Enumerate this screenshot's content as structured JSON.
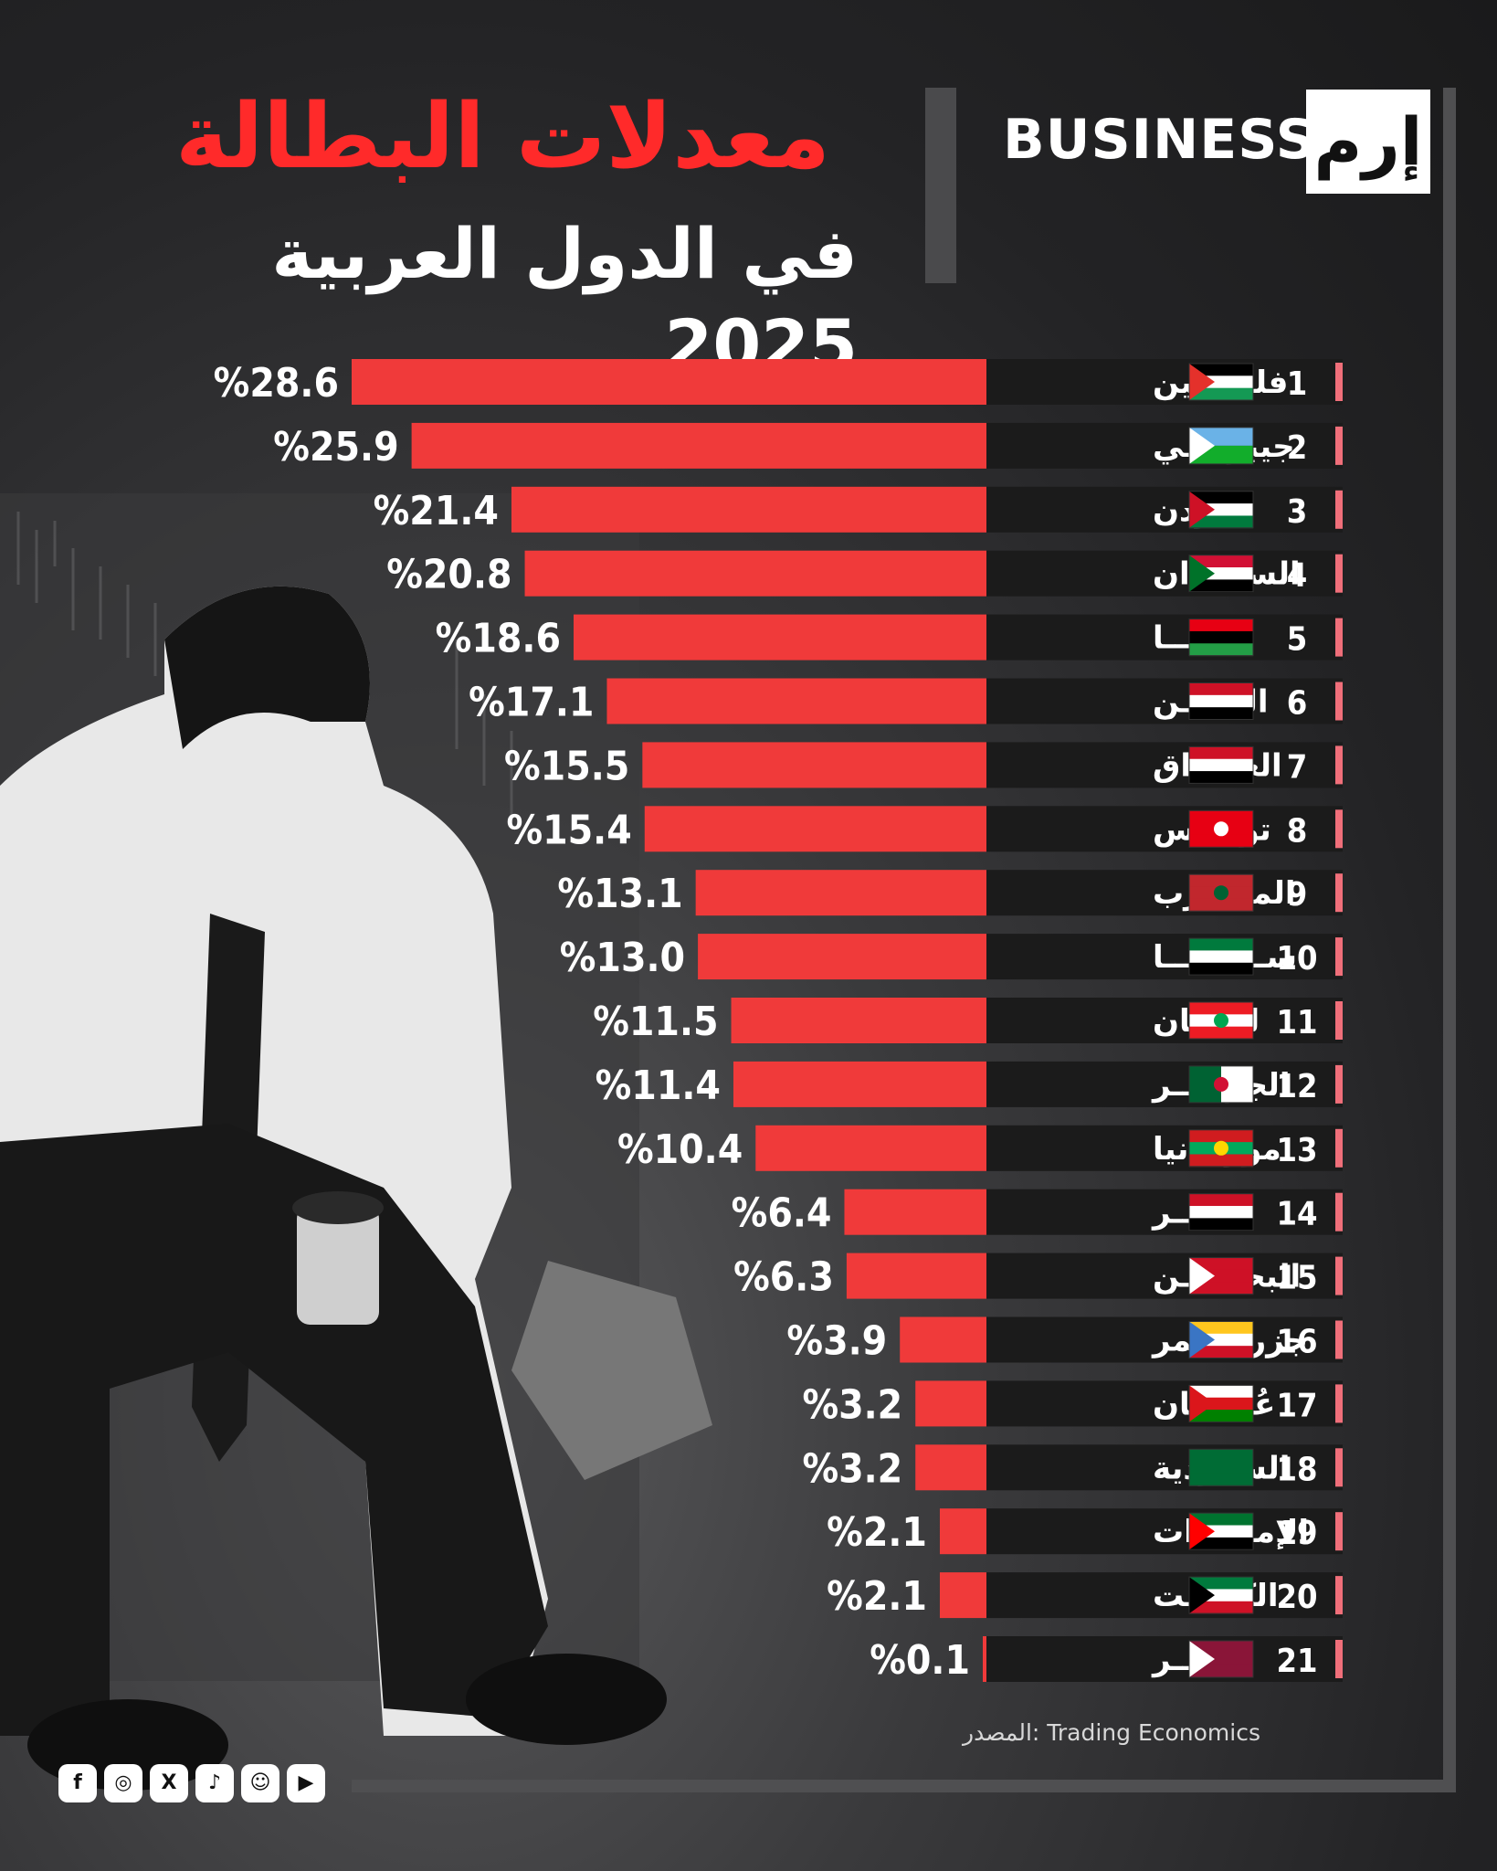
{
  "brand": {
    "business": "BUSINESS",
    "logo": "إرم"
  },
  "source": "المصدر: Trading Economics",
  "colors": {
    "bar": "#f03a3a",
    "label_bg": "#1b1b1b",
    "rank_marker": "#f06f7a",
    "title": "#ff2a2a"
  },
  "chart_data": {
    "type": "bar",
    "orientation": "horizontal",
    "title": "معدلات البطالة",
    "subtitle": "في الدول العربية 2025",
    "value_prefix": "%",
    "categories": [
      "فلسطين",
      "جيبوتـــي",
      "الأردن",
      "الســودان",
      "ليبيـــا",
      "اليمـــن",
      "العـــراق",
      "تونـــس",
      "المغـــرب",
      "ســوريـــا",
      "لبنـــان",
      "الجزائـــر",
      "موريتانيا",
      "مصـــر",
      "البحريـــن",
      "جزر القمر",
      "عُمــــان",
      "السعودية",
      "الإمـــارات",
      "الكويــت",
      "قطـــر"
    ],
    "ranks": [
      "1",
      "2",
      "3",
      "4",
      "5",
      "6",
      "7",
      "8",
      "9",
      "10",
      "11",
      "12",
      "13",
      "14",
      "15",
      "16",
      "17",
      "18",
      "19",
      "20",
      "21"
    ],
    "values": [
      28.6,
      25.9,
      21.4,
      20.8,
      18.6,
      17.1,
      15.5,
      15.4,
      13.1,
      13.0,
      11.5,
      11.4,
      10.4,
      6.4,
      6.3,
      3.9,
      3.2,
      3.2,
      2.1,
      2.1,
      0.1
    ],
    "value_labels": [
      "28.6",
      "25.9",
      "21.4",
      "20.8",
      "18.6",
      "17.1",
      "15.5",
      "15.4",
      "13.1",
      "13.0",
      "11.5",
      "11.4",
      "10.4",
      "6.4",
      "6.3",
      "3.9",
      "3.2",
      "3.2",
      "2.1",
      "2.1",
      "0.1"
    ],
    "flags": [
      "flag-palestine",
      "flag-djibouti",
      "flag-jordan",
      "flag-sudan",
      "flag-libya",
      "flag-yemen",
      "flag-iraq",
      "flag-tunisia",
      "flag-morocco",
      "flag-syria",
      "flag-lebanon",
      "flag-algeria",
      "flag-mauritania",
      "flag-egypt",
      "flag-bahrain",
      "flag-comoros",
      "flag-oman",
      "flag-saudi-arabia",
      "flag-uae",
      "flag-kuwait",
      "flag-qatar"
    ],
    "xlim": [
      0,
      28.6
    ],
    "grid": false,
    "legend": "none"
  }
}
